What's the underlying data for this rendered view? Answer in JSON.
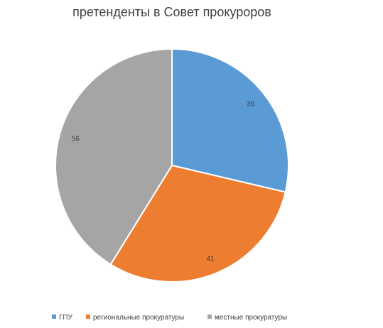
{
  "chart_data": {
    "type": "pie",
    "title": "претенденты в Совет прокуроров",
    "categories": [
      "ГПУ",
      "региональные прокуратуры",
      "местные прокуратуры"
    ],
    "values": [
      39,
      41,
      56
    ],
    "colors": [
      "#5b9bd5",
      "#ed7d31",
      "#a5a5a5"
    ],
    "data_labels": [
      "39",
      "41",
      "56"
    ],
    "legend_position": "bottom"
  }
}
